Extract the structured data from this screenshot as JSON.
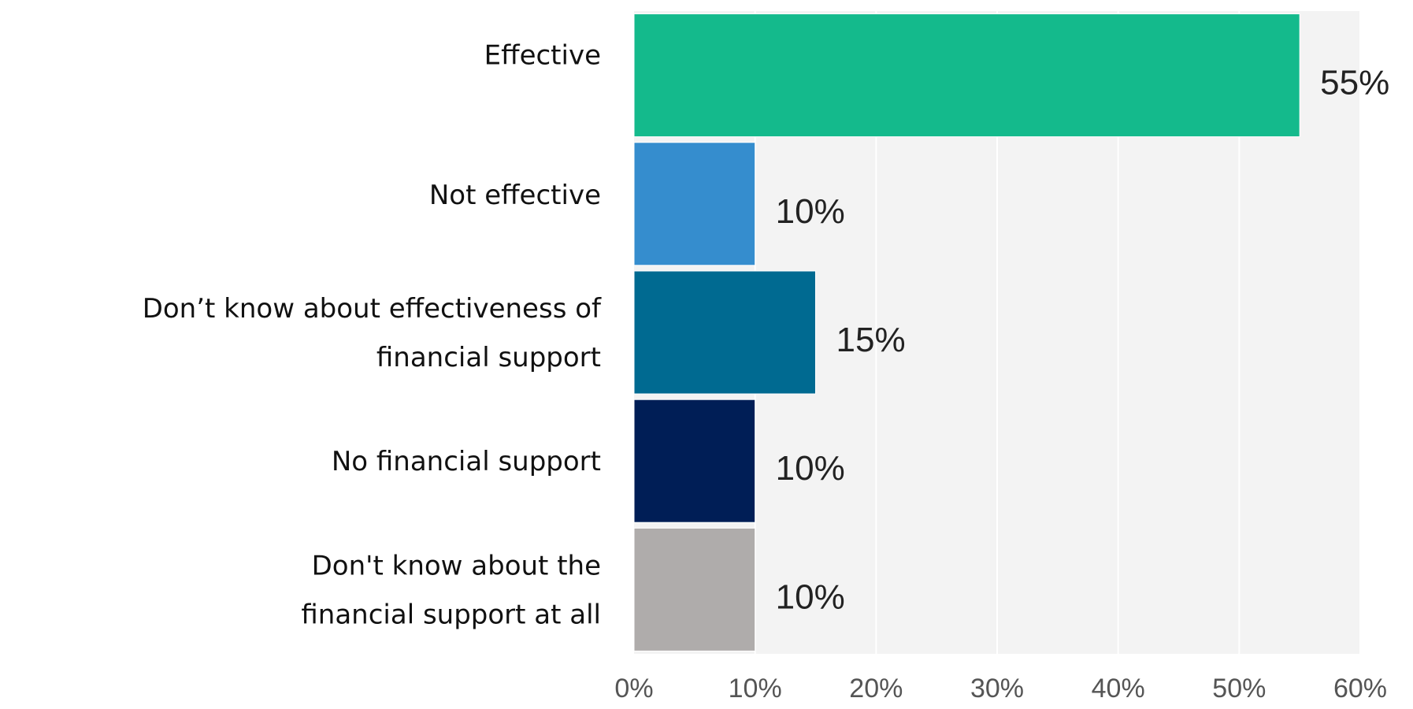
{
  "chart_data": {
    "type": "bar",
    "orientation": "horizontal",
    "categories": [
      [
        "Effective"
      ],
      [
        "Not effective"
      ],
      [
        "Don’t know about effectiveness of",
        "financial support"
      ],
      [
        "No financial support"
      ],
      [
        "Don't know about the",
        "financial support at all"
      ]
    ],
    "values": [
      55,
      10,
      15,
      10,
      10
    ],
    "value_labels": [
      "55%",
      "10%",
      "15%",
      "10%",
      "10%"
    ],
    "bar_colors": [
      "#14BA8C",
      "#358DCE",
      "#006A91",
      "#001E56",
      "#AFACAB"
    ],
    "xlim": [
      0,
      60
    ],
    "x_ticks": [
      0,
      10,
      20,
      30,
      40,
      50,
      60
    ],
    "x_tick_labels": [
      "0%",
      "10%",
      "20%",
      "30%",
      "40%",
      "50%",
      "60%"
    ],
    "grid": true,
    "plot_background": "#F3F3F3",
    "title": "",
    "xlabel": "",
    "ylabel": ""
  }
}
